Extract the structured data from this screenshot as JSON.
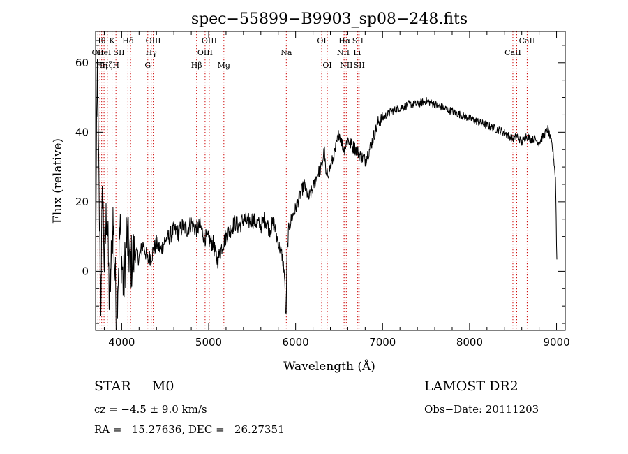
{
  "chart_data": {
    "type": "line",
    "title": "spec−55899−B9903_sp08−248.fits",
    "xlabel": "Wavelength (Å)",
    "ylabel": "Flux (relative)",
    "xlim": [
      3700,
      9100
    ],
    "ylim": [
      -17,
      69
    ],
    "xticks": [
      4000,
      5000,
      6000,
      7000,
      8000,
      9000
    ],
    "yticks": [
      0,
      20,
      40,
      60
    ],
    "ytick_labels": [
      "0",
      "20",
      "40",
      "60"
    ],
    "grid": false,
    "series": [
      {
        "x": [
          3700,
          3720,
          3740,
          3760,
          3780,
          3800,
          3830,
          3860,
          3900,
          3940,
          3980,
          4020,
          4060,
          4100,
          4150,
          4200,
          4250,
          4300,
          4350,
          4400,
          4450,
          4500,
          4550,
          4600,
          4650,
          4700,
          4750,
          4800,
          4850,
          4900,
          4950,
          5000,
          5050,
          5100,
          5150,
          5200,
          5250,
          5300,
          5350,
          5400,
          5450,
          5500,
          5550,
          5600,
          5650,
          5700,
          5750,
          5800,
          5840,
          5870,
          5890,
          5900,
          5920,
          5950,
          6000,
          6050,
          6100,
          6150,
          6200,
          6250,
          6300,
          6330,
          6350,
          6400,
          6450,
          6500,
          6530,
          6560,
          6600,
          6650,
          6700,
          6750,
          6800,
          6850,
          6900,
          6950,
          7000,
          7100,
          7200,
          7300,
          7400,
          7500,
          7600,
          7700,
          7800,
          7900,
          8000,
          8100,
          8200,
          8300,
          8400,
          8500,
          8550,
          8600,
          8650,
          8700,
          8750,
          8800,
          8850,
          8900,
          8950,
          8970,
          8990,
          9000,
          9005
        ],
        "y": [
          5,
          58,
          20,
          -8,
          25,
          2,
          20,
          -10,
          15,
          -12,
          12,
          -5,
          10,
          2,
          5,
          4,
          8,
          3,
          5,
          8,
          6,
          9,
          10,
          12,
          11,
          13,
          12,
          14,
          12,
          13,
          10,
          9,
          8,
          3,
          7,
          10,
          12,
          14,
          13,
          15,
          14,
          15,
          14,
          13,
          15,
          12,
          14,
          8,
          5,
          0,
          -15,
          4,
          12,
          15,
          18,
          22,
          25,
          21,
          24,
          28,
          30,
          35,
          27,
          30,
          34,
          40,
          37,
          35,
          38,
          36,
          35,
          33,
          32,
          35,
          39,
          43,
          44,
          46,
          47,
          48,
          48,
          49,
          48,
          47,
          46,
          45,
          44,
          43,
          42,
          41,
          40,
          38,
          39,
          37,
          39,
          38,
          38,
          37,
          39,
          41,
          36,
          32,
          26,
          8,
          2
        ]
      }
    ],
    "line_markers": [
      {
        "x": 3727,
        "label": "OII",
        "row": 2
      },
      {
        "x": 3750,
        "label": "Hθ",
        "row": 1
      },
      {
        "x": 3770,
        "label": "Hη",
        "row": 3
      },
      {
        "x": 3797,
        "label": "HeI",
        "row": 2
      },
      {
        "x": 3835,
        "label": "Hζ",
        "row": 3
      },
      {
        "x": 3889,
        "label": "K",
        "row": 1
      },
      {
        "x": 3934,
        "label": "H",
        "row": 3
      },
      {
        "x": 3969,
        "label": "SII",
        "row": 2
      },
      {
        "x": 4072,
        "label": "Hδ",
        "row": 1
      },
      {
        "x": 4102,
        "label": "",
        "row": 0
      },
      {
        "x": 4300,
        "label": "G",
        "row": 3
      },
      {
        "x": 4340,
        "label": "Hγ",
        "row": 2
      },
      {
        "x": 4363,
        "label": "OIII",
        "row": 1
      },
      {
        "x": 4861,
        "label": "Hβ",
        "row": 3
      },
      {
        "x": 4959,
        "label": "OIII",
        "row": 2
      },
      {
        "x": 5007,
        "label": "OIII",
        "row": 1
      },
      {
        "x": 5175,
        "label": "Mg",
        "row": 3
      },
      {
        "x": 5893,
        "label": "Na",
        "row": 2
      },
      {
        "x": 6300,
        "label": "OI",
        "row": 1
      },
      {
        "x": 6364,
        "label": "OI",
        "row": 3
      },
      {
        "x": 6548,
        "label": "NII",
        "row": 2
      },
      {
        "x": 6563,
        "label": "Hα",
        "row": 1
      },
      {
        "x": 6583,
        "label": "NII",
        "row": 3
      },
      {
        "x": 6707,
        "label": "Li",
        "row": 2
      },
      {
        "x": 6716,
        "label": "SII",
        "row": 1
      },
      {
        "x": 6731,
        "label": "SII",
        "row": 3
      },
      {
        "x": 8498,
        "label": "CaII",
        "row": 2
      },
      {
        "x": 8542,
        "label": "",
        "row": 0
      },
      {
        "x": 8662,
        "label": "CaII",
        "row": 1
      }
    ]
  },
  "footer": {
    "class_label": "STAR     M0",
    "survey": "LAMOST DR2",
    "cz": "cz = −4.5 ± 9.0 km/s",
    "obs_date": "Obs−Date: 20111203",
    "radec": "RA =   15.27636, DEC =   26.27351"
  }
}
